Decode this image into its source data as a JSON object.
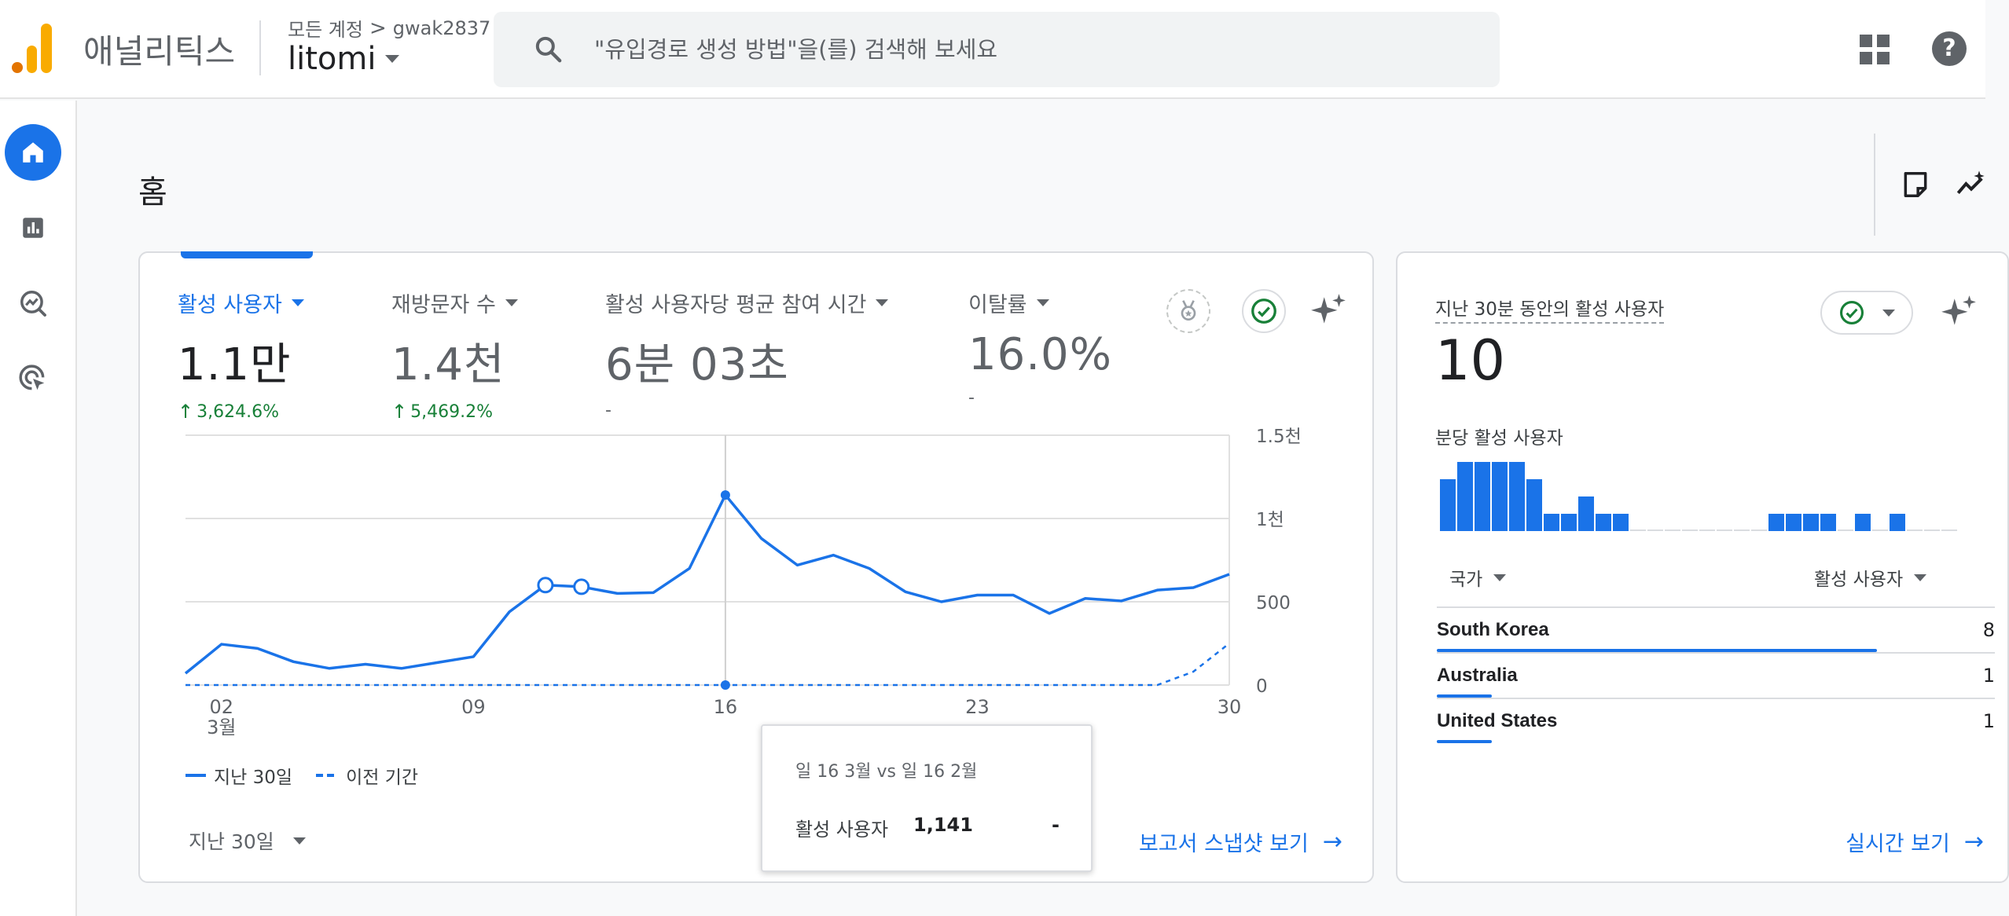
{
  "header": {
    "app_name": "애널리틱스",
    "breadcrumb_root": "모든 계정",
    "breadcrumb_sep": ">",
    "breadcrumb_account": "gwak2837",
    "property": "litomi",
    "search_placeholder": "\"유입경로 생성 방법\"을(를) 검색해 보세요",
    "help_glyph": "?"
  },
  "page": {
    "title": "홈"
  },
  "overview": {
    "metrics": [
      {
        "label": "활성 사용자",
        "value": "1.1만",
        "change": "3,624.6%",
        "trend": "up"
      },
      {
        "label": "재방문자 수",
        "value": "1.4천",
        "change": "5,469.2%",
        "trend": "up"
      },
      {
        "label": "활성 사용자당 평균 참여 시간",
        "value": "6분 03초",
        "change": "-"
      },
      {
        "label": "이탈률",
        "value": "16.0%",
        "change": "-"
      }
    ],
    "legend": {
      "current": "지난 30일",
      "previous": "이전 기간"
    },
    "period": "지난 30일",
    "report_link": "보고서 스냅샷 보기",
    "tooltip": {
      "title": "일 16 3월 vs 일 16 2월",
      "metric": "활성 사용자",
      "value": "1,141",
      "previous": "-"
    }
  },
  "chart_data": {
    "type": "line",
    "x_tick_labels": [
      "02",
      "09",
      "16",
      "23",
      "30"
    ],
    "x_month_label": "3월",
    "y_tick_labels": [
      "0",
      "500",
      "1천",
      "1.5천"
    ],
    "ylim": [
      0,
      1500
    ],
    "grid": true,
    "legend_position": "bottom-left",
    "x": [
      1,
      2,
      3,
      4,
      5,
      6,
      7,
      8,
      9,
      10,
      11,
      12,
      13,
      14,
      15,
      16,
      17,
      18,
      19,
      20,
      21,
      22,
      23,
      24,
      25,
      26,
      27,
      28,
      29,
      30
    ],
    "series": [
      {
        "name": "지난 30일",
        "style": "solid",
        "values": [
          70,
          245,
          220,
          140,
          100,
          125,
          100,
          135,
          170,
          440,
          600,
          590,
          550,
          555,
          700,
          1141,
          880,
          720,
          780,
          700,
          560,
          500,
          540,
          540,
          430,
          520,
          505,
          570,
          585,
          665
        ]
      },
      {
        "name": "이전 기간",
        "style": "dashed",
        "values": [
          0,
          0,
          0,
          0,
          0,
          0,
          0,
          0,
          0,
          0,
          0,
          0,
          0,
          0,
          0,
          0,
          0,
          0,
          0,
          0,
          0,
          0,
          0,
          0,
          0,
          0,
          0,
          0,
          80,
          250
        ]
      }
    ],
    "highlight_index": 15,
    "hollow_markers": [
      10,
      11
    ]
  },
  "realtime": {
    "title": "지난 30분 동안의 활성 사용자",
    "value": "10",
    "per_minute_label": "분당 활성 사용자",
    "per_minute_values": [
      3,
      4,
      4,
      4,
      4,
      3,
      1,
      1,
      2,
      1,
      1,
      0,
      0,
      0,
      0,
      0,
      0,
      0,
      0,
      1,
      1,
      1,
      1,
      0,
      1,
      0,
      1,
      0,
      0,
      0
    ],
    "col_country": "국가",
    "col_users": "활성 사용자",
    "rows": [
      {
        "country": "South Korea",
        "users": "8",
        "share": 0.8
      },
      {
        "country": "Australia",
        "users": "1",
        "share": 0.1
      },
      {
        "country": "United States",
        "users": "1",
        "share": 0.1
      }
    ],
    "link": "실시간 보기"
  },
  "colors": {
    "accent": "#1a73e8",
    "positive": "#188038",
    "logo_orange": "#f9ab00",
    "logo_dark": "#e37400"
  }
}
